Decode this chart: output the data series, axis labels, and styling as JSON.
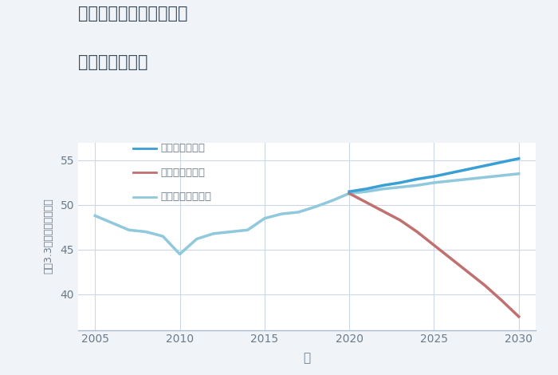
{
  "title_line1": "愛知県みよし市三好丘の",
  "title_line2": "土地の価格推移",
  "xlabel": "年",
  "ylabel": "坪（3.3㎡）単価（万円）",
  "background_color": "#f0f4f8",
  "plot_background": "#ffffff",
  "grid_color": "#ccd8e8",
  "historical_years": [
    2005,
    2006,
    2007,
    2008,
    2009,
    2010,
    2011,
    2012,
    2013,
    2014,
    2015,
    2016,
    2017,
    2018,
    2019,
    2020
  ],
  "historical_values": [
    48.8,
    48.0,
    47.2,
    47.0,
    46.5,
    44.5,
    46.2,
    46.8,
    47.0,
    47.2,
    48.5,
    49.0,
    49.2,
    49.8,
    50.5,
    51.3
  ],
  "good_years": [
    2020,
    2021,
    2022,
    2023,
    2024,
    2025,
    2026,
    2027,
    2028,
    2029,
    2030
  ],
  "good_values": [
    51.5,
    51.8,
    52.2,
    52.5,
    52.9,
    53.2,
    53.6,
    54.0,
    54.4,
    54.8,
    55.2
  ],
  "bad_years": [
    2020,
    2021,
    2022,
    2023,
    2024,
    2025,
    2026,
    2027,
    2028,
    2029,
    2030
  ],
  "bad_values": [
    51.3,
    50.3,
    49.3,
    48.3,
    47.0,
    45.5,
    44.0,
    42.5,
    41.0,
    39.3,
    37.5
  ],
  "normal_years": [
    2020,
    2021,
    2022,
    2023,
    2024,
    2025,
    2026,
    2027,
    2028,
    2029,
    2030
  ],
  "normal_values": [
    51.3,
    51.5,
    51.8,
    52.0,
    52.2,
    52.5,
    52.7,
    52.9,
    53.1,
    53.3,
    53.5
  ],
  "good_color": "#3a9fd4",
  "bad_color": "#c07070",
  "normal_color": "#90c8dc",
  "historical_color": "#90c8dc",
  "ylim_min": 36,
  "ylim_max": 57,
  "xlim_min": 2004.0,
  "xlim_max": 2031.0,
  "legend_good": "グッドシナリオ",
  "legend_bad": "バッドシナリオ",
  "legend_normal": "ノーマルシナリオ",
  "title_color": "#3a4a5a",
  "axis_color": "#6a7a8a",
  "tick_color": "#6a7a8a",
  "yticks": [
    40,
    45,
    50,
    55
  ],
  "xticks": [
    2005,
    2010,
    2015,
    2020,
    2025,
    2030
  ]
}
